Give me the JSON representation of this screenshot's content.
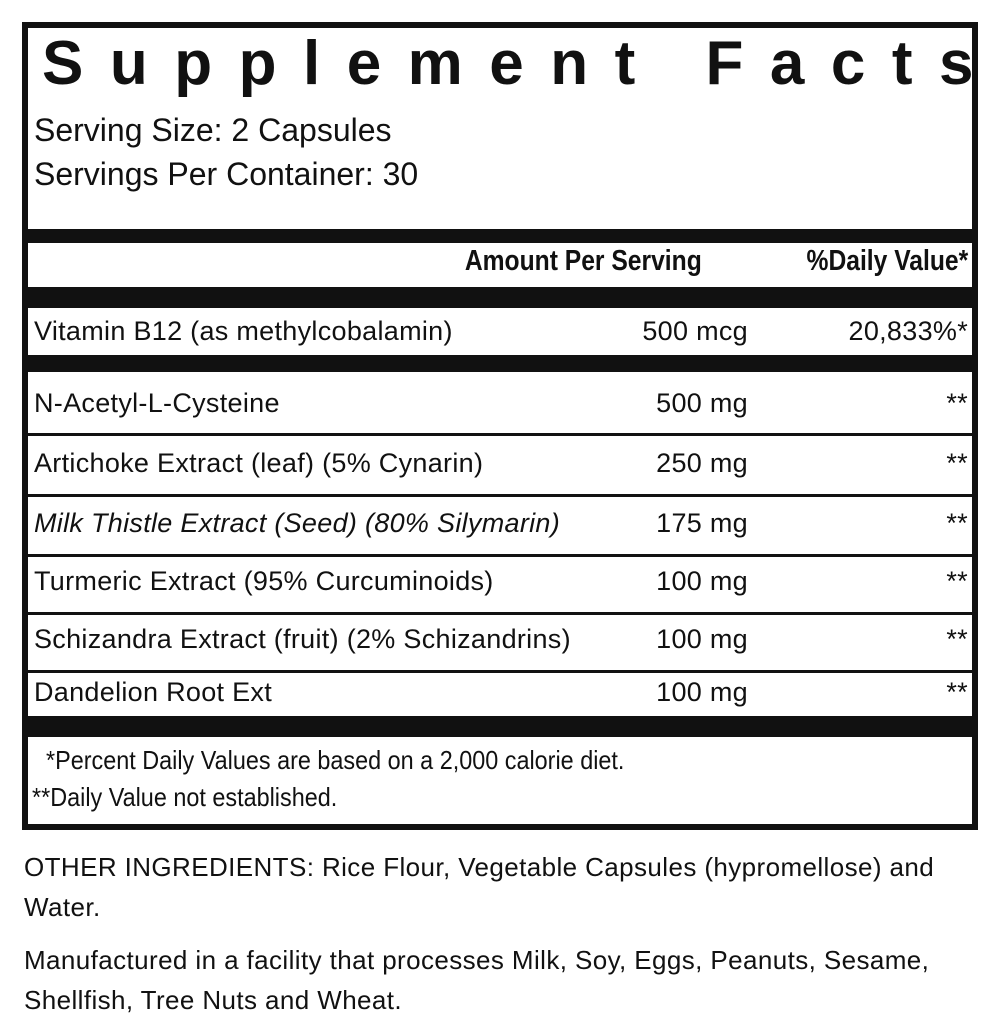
{
  "header": {
    "title": "Supplement Facts",
    "serving_size": "Serving Size: 2 Capsules",
    "servings_per_container": "Servings Per Container: 30"
  },
  "table": {
    "columns": [
      "Amount Per Serving",
      "%Daily Value*"
    ],
    "rows": [
      [
        "Vitamin B12 (as methylcobalamin)",
        "500 mcg",
        "20,833%*"
      ],
      [
        "N-Acetyl-L-Cysteine",
        "500 mg",
        "**"
      ],
      [
        "Artichoke Extract (leaf) (5% Cynarin)",
        "250 mg",
        "**"
      ],
      [
        "Milk Thistle Extract (Seed) (80% Silymarin)",
        "175 mg",
        "**"
      ],
      [
        "Turmeric Extract (95% Curcuminoids)",
        "100 mg",
        "**"
      ],
      [
        "Schizandra Extract (fruit) (2% Schizandrins)",
        "100 mg",
        "**"
      ],
      [
        "Dandelion Root Ext",
        "100 mg",
        "**"
      ]
    ]
  },
  "footnotes": [
    "*Percent Daily Values are based on a 2,000 calorie diet.",
    "**Daily Value not established."
  ],
  "other_ingredients": "OTHER INGREDIENTS: Rice Flour, Vegetable Capsules (hypromellose) and Water.",
  "allergen_note": "Manufactured in a facility that processes Milk, Soy, Eggs, Peanuts, Sesame, Shellfish, Tree Nuts and Wheat."
}
